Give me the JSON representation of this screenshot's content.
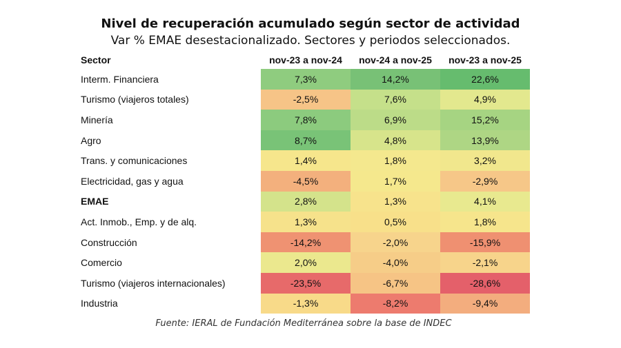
{
  "header": {
    "title": "Nivel de recuperación acumulado según sector de actividad",
    "subtitle": "Var % EMAE desestacionalizado. Sectores y periodos seleccionados."
  },
  "table": {
    "columns": [
      "Sector",
      "nov-23 a nov-24",
      "nov-24 a nov-25",
      "nov-23 a nov-25"
    ],
    "rows": [
      [
        "Interm. Financiera",
        "7,3%",
        "14,2%",
        "22,6%"
      ],
      [
        "Turismo (viajeros totales)",
        "-2,5%",
        "7,6%",
        "4,9%"
      ],
      [
        "Minería",
        "7,8%",
        "6,9%",
        "15,2%"
      ],
      [
        "Agro",
        "8,7%",
        "4,8%",
        "13,9%"
      ],
      [
        "Trans. y comunicaciones",
        "1,4%",
        "1,8%",
        "3,2%"
      ],
      [
        "Electricidad, gas y agua",
        "-4,5%",
        "1,7%",
        "-2,9%"
      ],
      [
        "EMAE",
        "2,8%",
        "1,3%",
        "4,1%"
      ],
      [
        "Act. Inmob., Emp. y de alq.",
        "1,3%",
        "0,5%",
        "1,8%"
      ],
      [
        "Construcción",
        "-14,2%",
        "-2,0%",
        "-15,9%"
      ],
      [
        "Comercio",
        "2,0%",
        "-4,0%",
        "-2,1%"
      ],
      [
        "Turismo (viajeros internacionales)",
        "-23,5%",
        "-6,7%",
        "-28,6%"
      ],
      [
        "Industria",
        "-1,3%",
        "-8,2%",
        "-9,4%"
      ]
    ],
    "colors": [
      [
        "#8fcc7f",
        "#78c176",
        "#66bc6e"
      ],
      [
        "#f6c487",
        "#c5e08a",
        "#e3e88e"
      ],
      [
        "#8ccb7e",
        "#bcdc88",
        "#a6d482"
      ],
      [
        "#79c377",
        "#d7e48b",
        "#aed684"
      ],
      [
        "#f6e68c",
        "#f4e88e",
        "#f1e78d"
      ],
      [
        "#f3b07d",
        "#f5e88d",
        "#f6c788"
      ],
      [
        "#d4e38b",
        "#f7e38c",
        "#e8e98f"
      ],
      [
        "#f6e28b",
        "#f8e08a",
        "#f6e58c"
      ],
      [
        "#ef9272",
        "#f7d48c",
        "#ef9071"
      ],
      [
        "#ebe88e",
        "#f6cd88",
        "#f7d48b"
      ],
      [
        "#e76a6a",
        "#f6c485",
        "#e4606a"
      ],
      [
        "#f8da89",
        "#ed7b6e",
        "#f3ad7e"
      ]
    ],
    "bold_rows": [
      6
    ]
  },
  "footer": {
    "source": "Fuente: IERAL de Fundación Mediterránea sobre la base de INDEC"
  }
}
